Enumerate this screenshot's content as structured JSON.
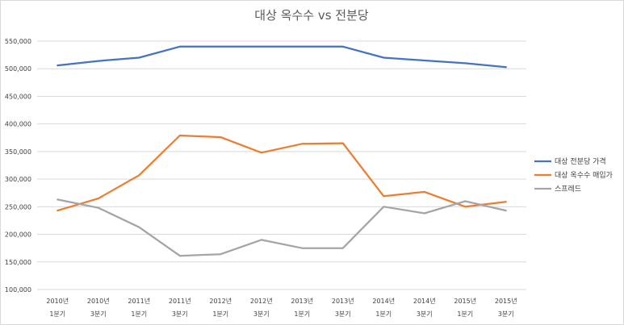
{
  "chart_data": {
    "type": "line",
    "title": "대상 옥수수 vs 전분당",
    "categories": [
      [
        "2010년",
        "1분기"
      ],
      [
        "2010년",
        "3분기"
      ],
      [
        "2011년",
        "1분기"
      ],
      [
        "2011년",
        "3분기"
      ],
      [
        "2012년",
        "1분기"
      ],
      [
        "2012년",
        "3분기"
      ],
      [
        "2013년",
        "1분기"
      ],
      [
        "2013년",
        "3분기"
      ],
      [
        "2014년",
        "1분기"
      ],
      [
        "2014년",
        "3분기"
      ],
      [
        "2015년",
        "1분기"
      ],
      [
        "2015년",
        "3분기"
      ]
    ],
    "ylim": [
      100000,
      550000
    ],
    "yticks": [
      "550,000",
      "500,000",
      "450,000",
      "400,000",
      "350,000",
      "300,000",
      "250,000",
      "200,000",
      "150,000",
      "100,000"
    ],
    "grid": true,
    "legend_position": "right",
    "series": [
      {
        "name": "대상 전분당 가격",
        "color": "#4472c4",
        "values": [
          506000,
          514000,
          520000,
          540000,
          540000,
          540000,
          540000,
          540000,
          520000,
          515000,
          510000,
          503000
        ]
      },
      {
        "name": "대상 옥수수 매입가",
        "color": "#ed7d31",
        "values": [
          243000,
          265000,
          307000,
          379000,
          376000,
          348000,
          364000,
          365000,
          269000,
          277000,
          250000,
          259000
        ]
      },
      {
        "name": "스프레드",
        "color": "#a5a5a5",
        "values": [
          263000,
          248000,
          213000,
          161000,
          164000,
          190000,
          175000,
          175000,
          250000,
          238000,
          260000,
          243000
        ]
      }
    ]
  }
}
